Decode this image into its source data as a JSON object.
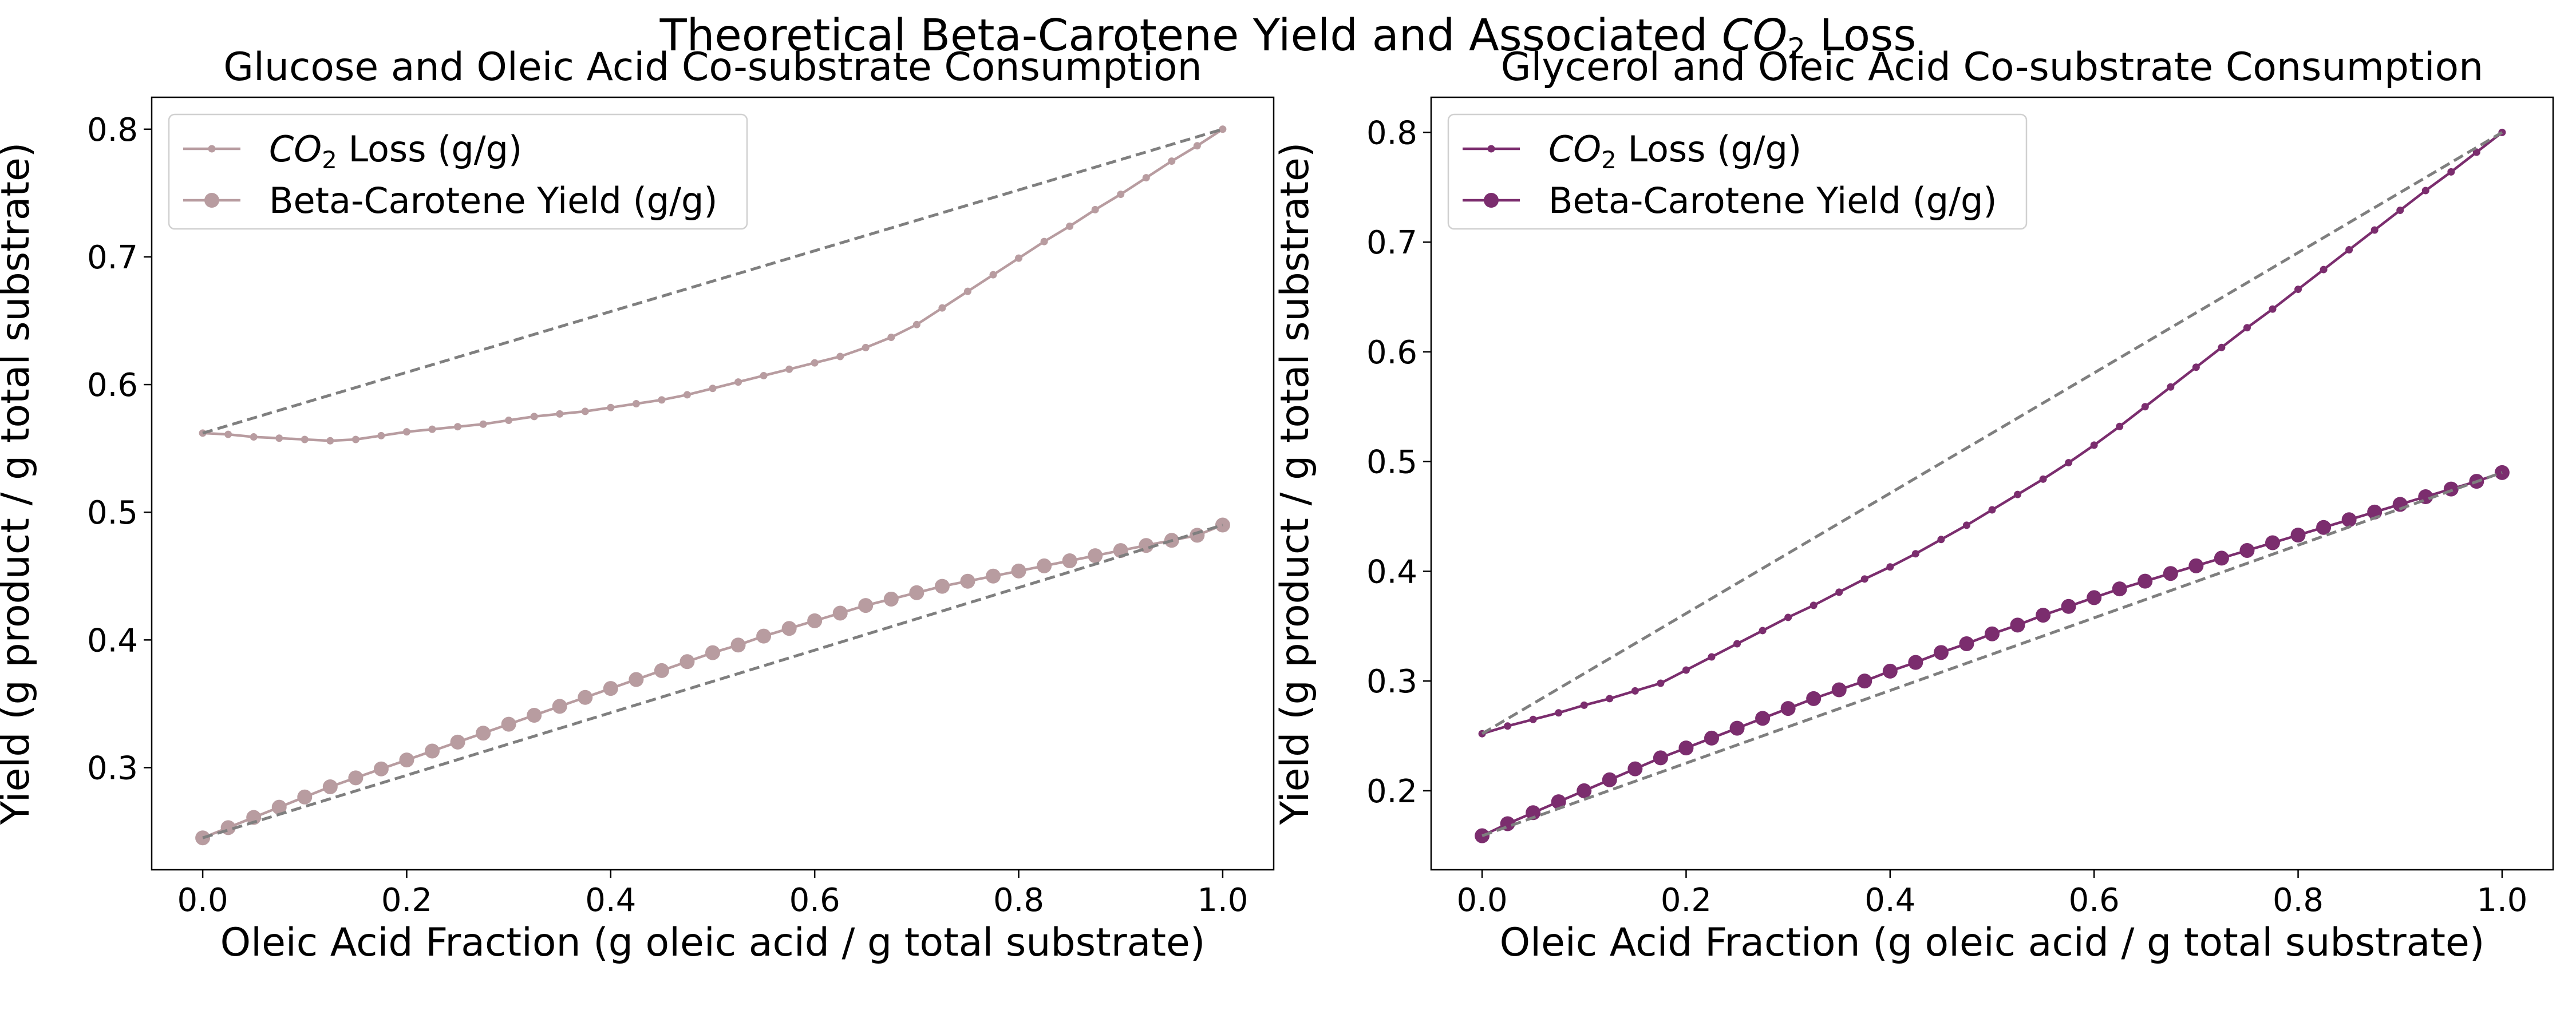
{
  "figure": {
    "title": "Theoretical Beta-Carotene Yield and Associated",
    "title_co2": "CO",
    "title_sub": "2",
    "title_tail": "Loss"
  },
  "chart_data": [
    {
      "type": "line",
      "title": "Glucose and Oleic Acid Co-substrate Consumption",
      "xlabel": "Oleic Acid Fraction (g oleic acid / g total substrate)",
      "ylabel": "Yield (g product / g total substrate)",
      "xlim": [
        -0.05,
        1.05
      ],
      "ylim": [
        0.22,
        0.825
      ],
      "xticks": [
        0.0,
        0.2,
        0.4,
        0.6,
        0.8,
        1.0
      ],
      "xtick_labels": [
        "0.0",
        "0.2",
        "0.4",
        "0.6",
        "0.8",
        "1.0"
      ],
      "yticks": [
        0.3,
        0.4,
        0.5,
        0.6,
        0.7,
        0.8
      ],
      "ytick_labels": [
        "0.3",
        "0.4",
        "0.5",
        "0.6",
        "0.7",
        "0.8"
      ],
      "color": "#b89ca0",
      "legend": {
        "location": "upper-left",
        "co2_prefix": "CO",
        "co2_sub": "2",
        "co2_suffix": "Loss (g/g)"
      },
      "series": [
        {
          "name": "CO2 Loss (g/g)",
          "marker": "small",
          "x": [
            0.0,
            0.025,
            0.05,
            0.075,
            0.1,
            0.125,
            0.15,
            0.175,
            0.2,
            0.225,
            0.25,
            0.275,
            0.3,
            0.325,
            0.35,
            0.375,
            0.4,
            0.425,
            0.45,
            0.475,
            0.5,
            0.525,
            0.55,
            0.575,
            0.6,
            0.625,
            0.65,
            0.675,
            0.7,
            0.725,
            0.75,
            0.775,
            0.8,
            0.825,
            0.85,
            0.875,
            0.9,
            0.925,
            0.95,
            0.975,
            1.0
          ],
          "y": [
            0.562,
            0.561,
            0.559,
            0.558,
            0.557,
            0.556,
            0.557,
            0.56,
            0.563,
            0.565,
            0.567,
            0.569,
            0.572,
            0.575,
            0.577,
            0.579,
            0.582,
            0.585,
            0.588,
            0.592,
            0.597,
            0.602,
            0.607,
            0.612,
            0.617,
            0.622,
            0.629,
            0.637,
            0.647,
            0.66,
            0.673,
            0.686,
            0.699,
            0.712,
            0.724,
            0.737,
            0.749,
            0.762,
            0.775,
            0.787,
            0.8
          ]
        },
        {
          "name": "Beta-Carotene Yield (g/g)",
          "marker": "large",
          "x": [
            0.0,
            0.025,
            0.05,
            0.075,
            0.1,
            0.125,
            0.15,
            0.175,
            0.2,
            0.225,
            0.25,
            0.275,
            0.3,
            0.325,
            0.35,
            0.375,
            0.4,
            0.425,
            0.45,
            0.475,
            0.5,
            0.525,
            0.55,
            0.575,
            0.6,
            0.625,
            0.65,
            0.675,
            0.7,
            0.725,
            0.75,
            0.775,
            0.8,
            0.825,
            0.85,
            0.875,
            0.9,
            0.925,
            0.95,
            0.975,
            1.0
          ],
          "y": [
            0.245,
            0.253,
            0.261,
            0.269,
            0.277,
            0.285,
            0.292,
            0.299,
            0.306,
            0.313,
            0.32,
            0.327,
            0.334,
            0.341,
            0.348,
            0.355,
            0.362,
            0.369,
            0.376,
            0.383,
            0.39,
            0.396,
            0.403,
            0.409,
            0.415,
            0.421,
            0.427,
            0.432,
            0.437,
            0.442,
            0.446,
            0.45,
            0.454,
            0.458,
            0.462,
            0.466,
            0.47,
            0.474,
            0.478,
            0.482,
            0.49
          ]
        },
        {
          "name": "",
          "style": "dashed",
          "color": "#7f7f7f",
          "x": [
            0.0,
            1.0
          ],
          "y": [
            0.562,
            0.8
          ]
        },
        {
          "name": "",
          "style": "dashed",
          "color": "#7f7f7f",
          "x": [
            0.0,
            1.0
          ],
          "y": [
            0.245,
            0.49
          ]
        }
      ]
    },
    {
      "type": "line",
      "title": "Glycerol and Oleic Acid Co-substrate Consumption",
      "xlabel": "Oleic Acid Fraction (g oleic acid / g total substrate)",
      "ylabel": "Yield (g product / g total substrate)",
      "xlim": [
        -0.05,
        1.05
      ],
      "ylim": [
        0.128,
        0.832
      ],
      "xticks": [
        0.0,
        0.2,
        0.4,
        0.6,
        0.8,
        1.0
      ],
      "xtick_labels": [
        "0.0",
        "0.2",
        "0.4",
        "0.6",
        "0.8",
        "1.0"
      ],
      "yticks": [
        0.2,
        0.3,
        0.4,
        0.5,
        0.6,
        0.7,
        0.8
      ],
      "ytick_labels": [
        "0.2",
        "0.3",
        "0.4",
        "0.5",
        "0.6",
        "0.7",
        "0.8"
      ],
      "color": "#7b2d6e",
      "legend": {
        "location": "upper-left",
        "co2_prefix": "CO",
        "co2_sub": "2",
        "co2_suffix": "Loss (g/g)"
      },
      "series": [
        {
          "name": "CO2 Loss (g/g)",
          "marker": "small",
          "x": [
            0.0,
            0.025,
            0.05,
            0.075,
            0.1,
            0.125,
            0.15,
            0.175,
            0.2,
            0.225,
            0.25,
            0.275,
            0.3,
            0.325,
            0.35,
            0.375,
            0.4,
            0.425,
            0.45,
            0.475,
            0.5,
            0.525,
            0.55,
            0.575,
            0.6,
            0.625,
            0.65,
            0.675,
            0.7,
            0.725,
            0.75,
            0.775,
            0.8,
            0.825,
            0.85,
            0.875,
            0.9,
            0.925,
            0.95,
            0.975,
            1.0
          ],
          "y": [
            0.252,
            0.259,
            0.265,
            0.271,
            0.278,
            0.284,
            0.291,
            0.298,
            0.31,
            0.322,
            0.334,
            0.346,
            0.358,
            0.369,
            0.381,
            0.393,
            0.404,
            0.416,
            0.429,
            0.442,
            0.456,
            0.47,
            0.484,
            0.499,
            0.515,
            0.532,
            0.55,
            0.568,
            0.586,
            0.604,
            0.622,
            0.639,
            0.657,
            0.675,
            0.693,
            0.711,
            0.729,
            0.747,
            0.764,
            0.782,
            0.8
          ]
        },
        {
          "name": "Beta-Carotene Yield (g/g)",
          "marker": "large",
          "x": [
            0.0,
            0.025,
            0.05,
            0.075,
            0.1,
            0.125,
            0.15,
            0.175,
            0.2,
            0.225,
            0.25,
            0.275,
            0.3,
            0.325,
            0.35,
            0.375,
            0.4,
            0.425,
            0.45,
            0.475,
            0.5,
            0.525,
            0.55,
            0.575,
            0.6,
            0.625,
            0.65,
            0.675,
            0.7,
            0.725,
            0.75,
            0.775,
            0.8,
            0.825,
            0.85,
            0.875,
            0.9,
            0.925,
            0.95,
            0.975,
            1.0
          ],
          "y": [
            0.159,
            0.17,
            0.18,
            0.19,
            0.2,
            0.21,
            0.22,
            0.23,
            0.239,
            0.248,
            0.257,
            0.266,
            0.275,
            0.284,
            0.292,
            0.3,
            0.309,
            0.317,
            0.326,
            0.334,
            0.343,
            0.351,
            0.36,
            0.368,
            0.376,
            0.384,
            0.391,
            0.398,
            0.405,
            0.412,
            0.419,
            0.426,
            0.433,
            0.44,
            0.447,
            0.454,
            0.461,
            0.468,
            0.475,
            0.482,
            0.49
          ]
        },
        {
          "name": "",
          "style": "dashed",
          "color": "#7f7f7f",
          "x": [
            0.0,
            1.0
          ],
          "y": [
            0.252,
            0.8
          ]
        },
        {
          "name": "",
          "style": "dashed",
          "color": "#7f7f7f",
          "x": [
            0.0,
            1.0
          ],
          "y": [
            0.159,
            0.49
          ]
        }
      ]
    }
  ]
}
